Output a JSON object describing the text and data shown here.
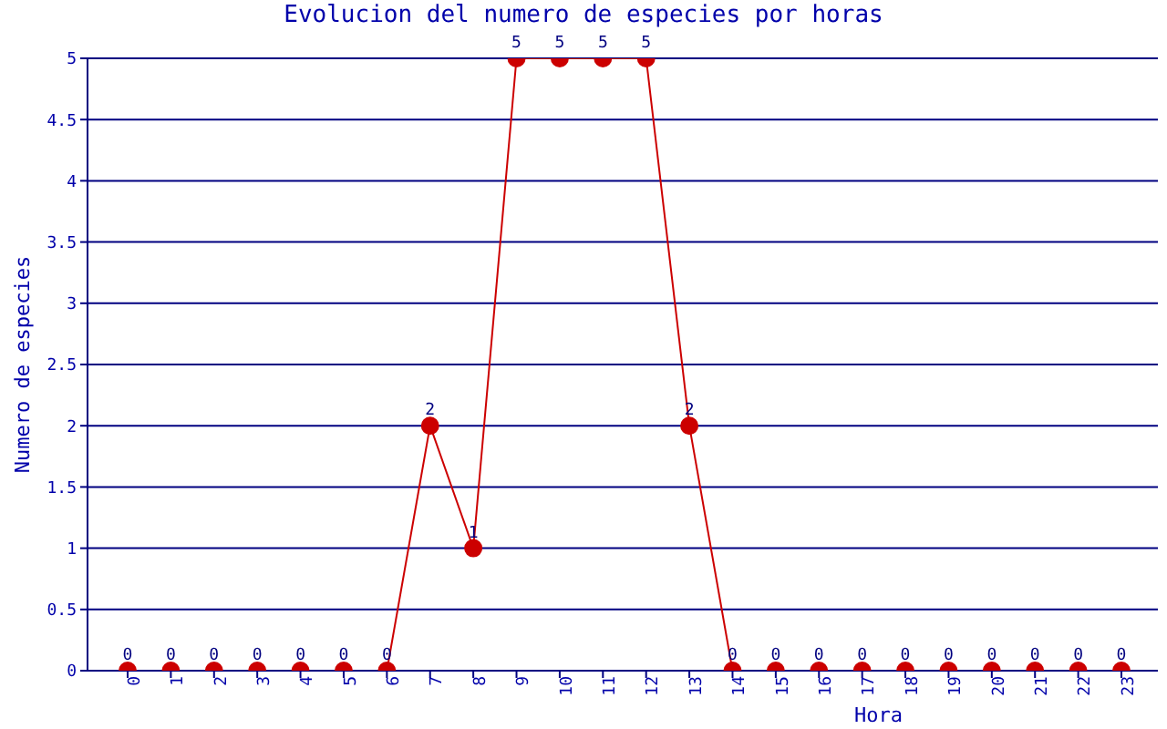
{
  "chart_data": {
    "type": "line",
    "title": "Evolucion del numero de especies por horas",
    "xlabel": "Hora",
    "ylabel": "Numero de especies",
    "categories": [
      "0",
      "1",
      "2",
      "3",
      "4",
      "5",
      "6",
      "7",
      "8",
      "9",
      "10",
      "11",
      "12",
      "13",
      "14",
      "15",
      "16",
      "17",
      "18",
      "19",
      "20",
      "21",
      "22",
      "23"
    ],
    "series": [
      {
        "color": "#cc0000",
        "values": [
          0,
          0,
          0,
          0,
          0,
          0,
          0,
          2,
          1,
          5,
          5,
          5,
          5,
          2,
          0,
          0,
          0,
          0,
          0,
          0,
          0,
          0,
          0,
          0
        ]
      }
    ],
    "ylim": [
      0,
      5
    ],
    "yticks": [
      0,
      0.5,
      1,
      1.5,
      2,
      2.5,
      3,
      3.5,
      4,
      4.5,
      5
    ],
    "grid": "y",
    "marker": "circle",
    "line_style": "solid",
    "data_labels": true,
    "legend": false
  }
}
